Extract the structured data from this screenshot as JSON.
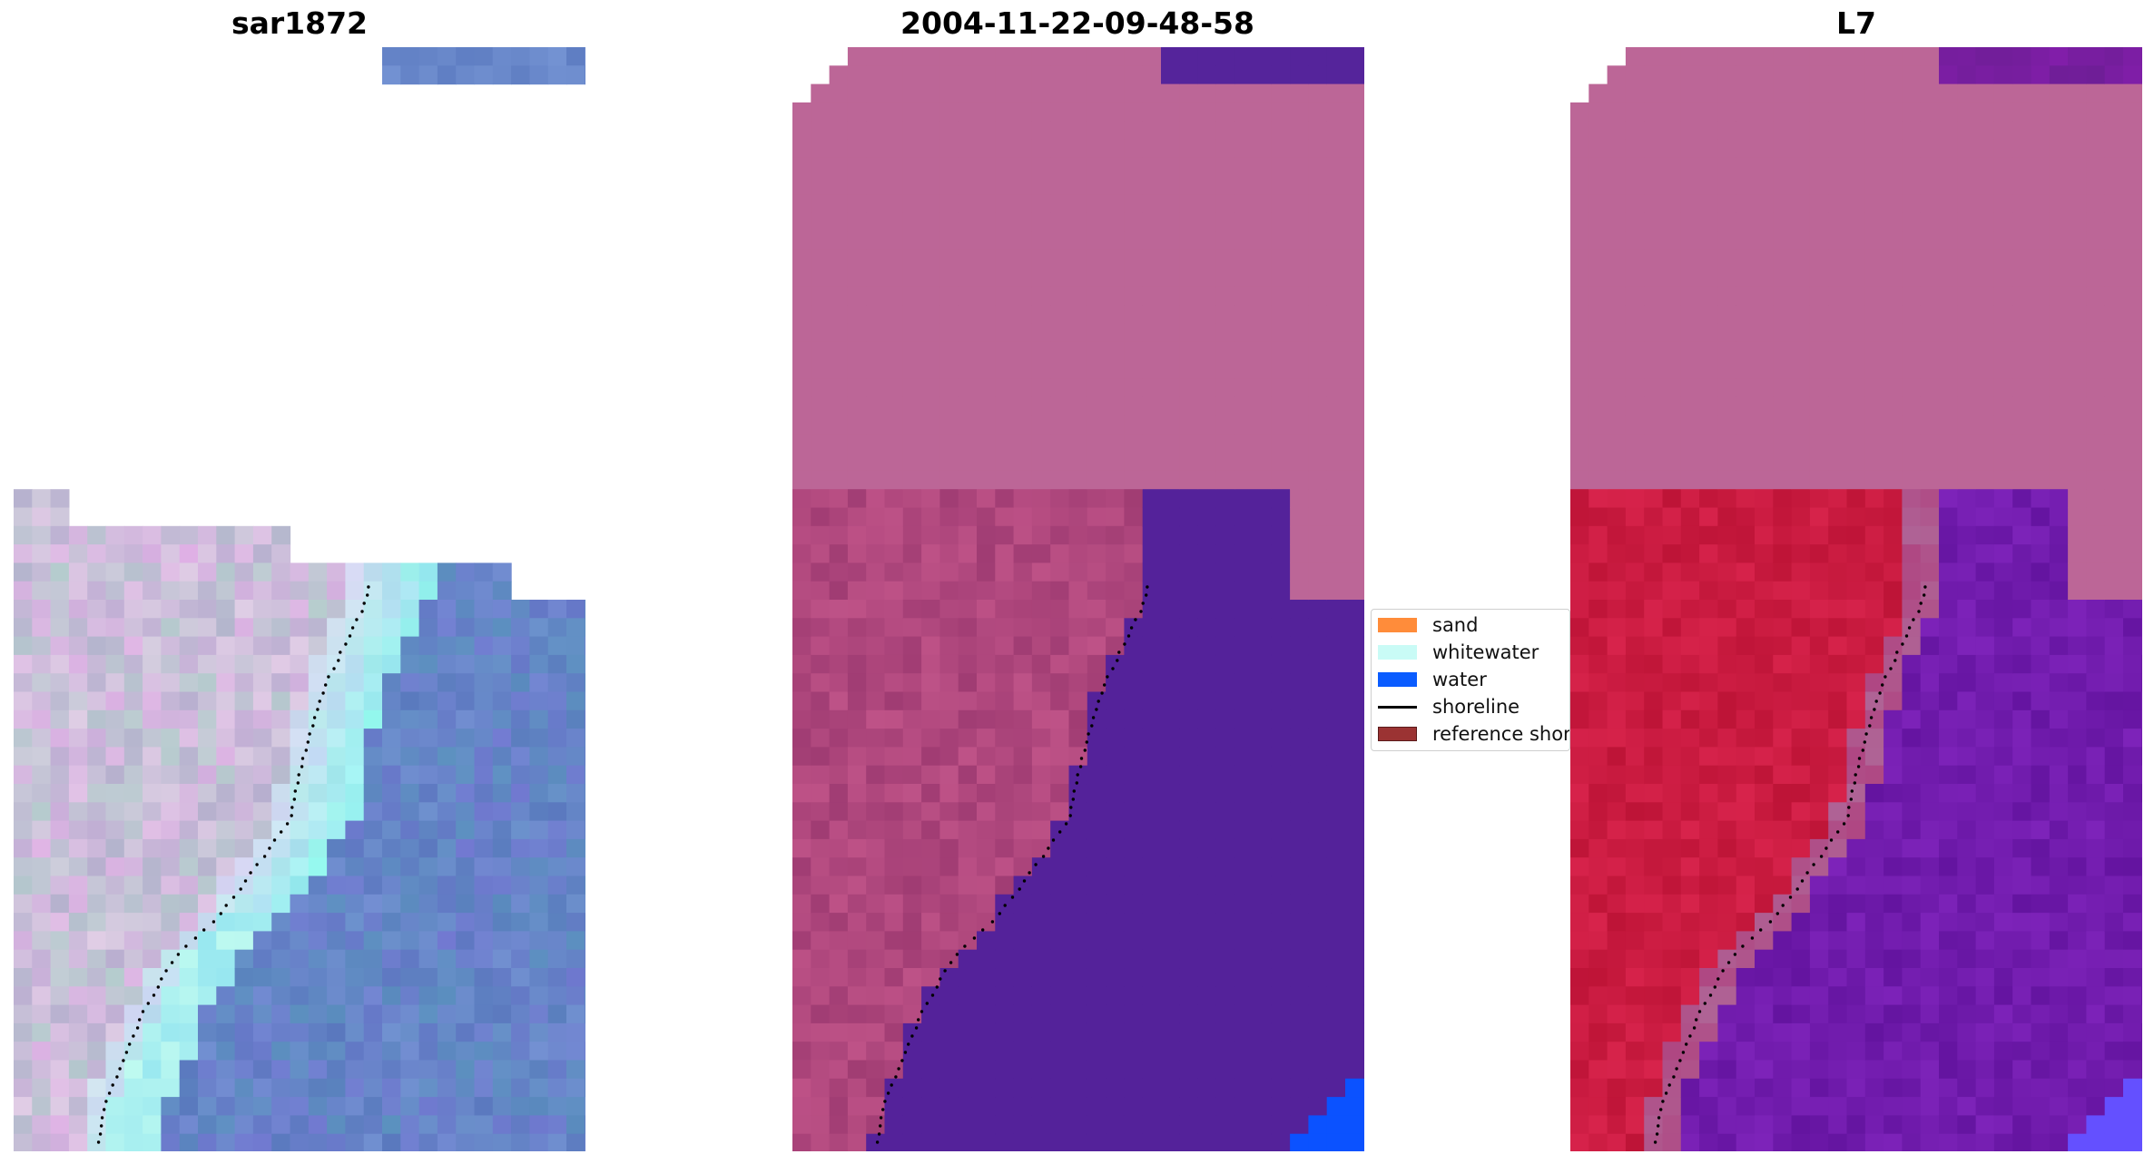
{
  "panels": [
    {
      "title": "sar1872",
      "kind": "rgb"
    },
    {
      "title": "2004-11-22-09-48-58",
      "kind": "classified"
    },
    {
      "title": "L7",
      "kind": "mndwi"
    }
  ],
  "legend": {
    "items": [
      {
        "label": "sand",
        "color": "#ff8c3a",
        "type": "patch"
      },
      {
        "label": "whitewater",
        "color": "#c9fbf6",
        "type": "patch"
      },
      {
        "label": "water",
        "color": "#0a5cff",
        "type": "patch"
      },
      {
        "label": "shoreline",
        "color": "#000000",
        "type": "line"
      },
      {
        "label": "reference shoreline",
        "color": "#9b3333",
        "type": "patch"
      }
    ]
  },
  "colors": {
    "land_overlay": "#bc6697",
    "water_class": "#54229a",
    "water_blue": "#0b52ff",
    "rgb_water": "#5f7ec1",
    "mndwi_land": "#c81642",
    "mndwi_water": "#6a1aa3"
  }
}
